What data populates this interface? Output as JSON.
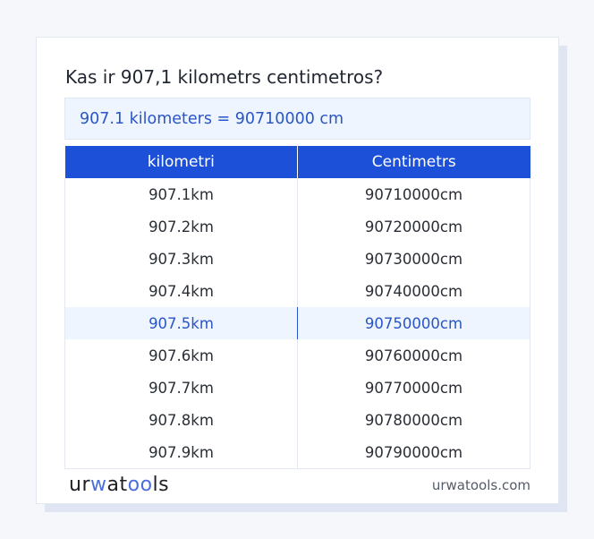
{
  "title": "Kas ir 907,1 kilometrs centimetros?",
  "result": "907.1 kilometers = 90710000 cm",
  "table": {
    "headers": [
      "kilometri",
      "Centimetrs"
    ],
    "rows": [
      [
        "907.1km",
        "90710000cm"
      ],
      [
        "907.2km",
        "90720000cm"
      ],
      [
        "907.3km",
        "90730000cm"
      ],
      [
        "907.4km",
        "90740000cm"
      ],
      [
        "907.5km",
        "90750000cm"
      ],
      [
        "907.6km",
        "90760000cm"
      ],
      [
        "907.7km",
        "90770000cm"
      ],
      [
        "907.8km",
        "90780000cm"
      ],
      [
        "907.9km",
        "90790000cm"
      ]
    ],
    "highlighted_row": 4
  },
  "footer": {
    "logo": {
      "p1": "ur",
      "p2": "w",
      "p3": "at",
      "p4": "oo",
      "p5": "ls"
    },
    "site": "urwatools.com"
  },
  "colors": {
    "accent": "#1c50d8",
    "highlight_bg": "#eef5fe",
    "highlight_text": "#2a55c6"
  }
}
